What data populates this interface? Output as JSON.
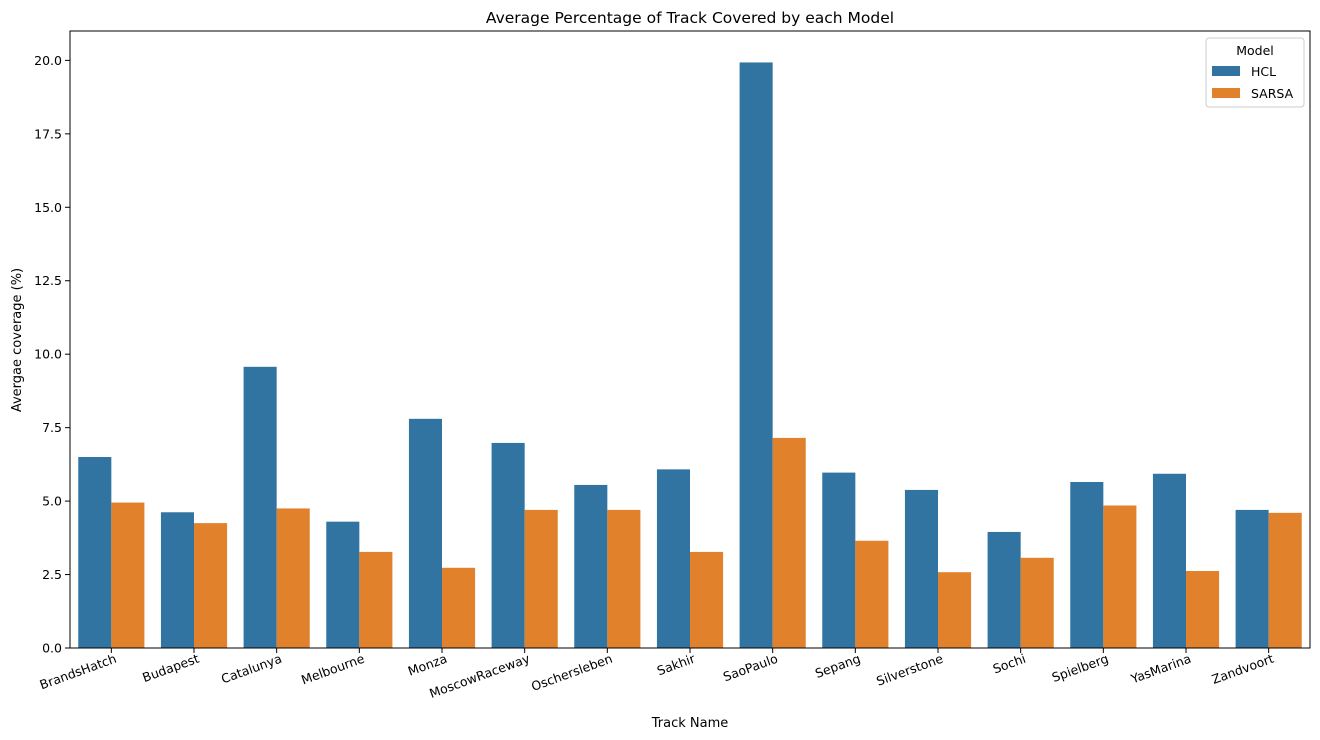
{
  "chart_data": {
    "type": "bar",
    "title": "Average Percentage of Track Covered by each Model",
    "xlabel": "Track Name",
    "ylabel": "Avergae coverage (%)",
    "ylim": [
      0,
      21
    ],
    "yticks": [
      0.0,
      2.5,
      5.0,
      7.5,
      10.0,
      12.5,
      15.0,
      17.5,
      20.0
    ],
    "ytick_labels": [
      "0.0",
      "2.5",
      "5.0",
      "7.5",
      "10.0",
      "12.5",
      "15.0",
      "17.5",
      "20.0"
    ],
    "categories": [
      "BrandsHatch",
      "Budapest",
      "Catalunya",
      "Melbourne",
      "Monza",
      "MoscowRaceway",
      "Oschersleben",
      "Sakhir",
      "SaoPaulo",
      "Sepang",
      "Silverstone",
      "Sochi",
      "Spielberg",
      "YasMarina",
      "Zandvoort"
    ],
    "legend_title": "Model",
    "legend_position": "top-right",
    "grid": false,
    "series": [
      {
        "name": "HCL",
        "color": "#3274a1",
        "values": [
          6.5,
          4.62,
          9.57,
          4.3,
          7.8,
          6.98,
          5.55,
          6.08,
          19.93,
          5.97,
          5.38,
          3.95,
          5.65,
          5.93,
          4.7
        ]
      },
      {
        "name": "SARSA",
        "color": "#e1812c",
        "values": [
          4.95,
          4.25,
          4.75,
          3.27,
          2.73,
          4.7,
          4.7,
          3.27,
          7.15,
          3.65,
          2.58,
          3.07,
          4.85,
          2.62,
          4.6
        ]
      }
    ]
  }
}
